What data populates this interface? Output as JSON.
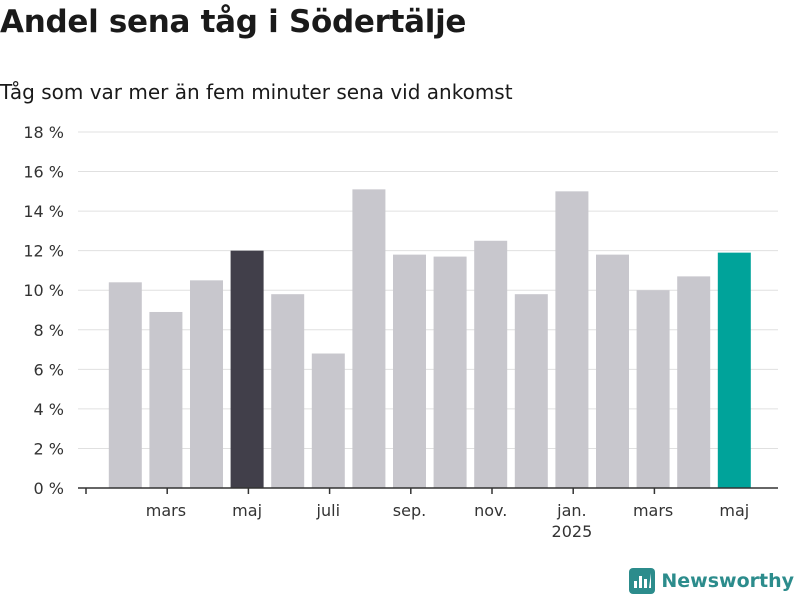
{
  "title": "Andel sena tåg i Södertälje",
  "subtitle": "Tåg som var mer än fem minuter sena vid ankomst",
  "brand": "Newsworthy",
  "colors": {
    "default_bar": "#c8c7cd",
    "highlight_previous": "#413f4a",
    "highlight_current": "#00a39a",
    "gridline": "#e0e0e0",
    "axis": "#333333"
  },
  "chart_data": {
    "type": "bar",
    "y_tick_labels": [
      "0 %",
      "2 %",
      "4 %",
      "6 %",
      "8 %",
      "10 %",
      "12 %",
      "14 %",
      "16 %",
      "18 %"
    ],
    "ylim": [
      0,
      18
    ],
    "grid": true,
    "x_tick_labels": [
      {
        "index": 1,
        "label": "mars",
        "sub": ""
      },
      {
        "index": 3,
        "label": "maj",
        "sub": ""
      },
      {
        "index": 5,
        "label": "juli",
        "sub": ""
      },
      {
        "index": 7,
        "label": "sep.",
        "sub": ""
      },
      {
        "index": 9,
        "label": "nov.",
        "sub": ""
      },
      {
        "index": 11,
        "label": "jan.",
        "sub": "2025"
      },
      {
        "index": 13,
        "label": "mars",
        "sub": ""
      },
      {
        "index": 15,
        "label": "maj",
        "sub": ""
      }
    ],
    "values": [
      10.4,
      8.9,
      10.5,
      12.0,
      9.8,
      6.8,
      15.1,
      11.8,
      11.7,
      12.5,
      9.8,
      15.0,
      11.8,
      10.0,
      10.7,
      11.9
    ],
    "highlight": {
      "3": "highlight_previous",
      "15": "highlight_current"
    }
  }
}
